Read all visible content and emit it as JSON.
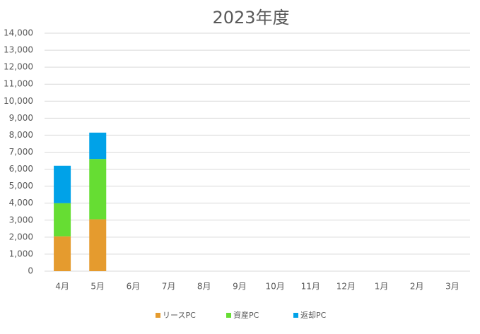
{
  "chart_data": {
    "type": "stacked_bar",
    "title": "2023年度",
    "categories": [
      "4月",
      "5月",
      "6月",
      "7月",
      "8月",
      "9月",
      "10月",
      "11月",
      "12月",
      "1月",
      "2月",
      "3月"
    ],
    "series": [
      {
        "name": "リースPC",
        "color": "#e59b2e",
        "values": [
          2050,
          3050,
          null,
          null,
          null,
          null,
          null,
          null,
          null,
          null,
          null,
          null
        ]
      },
      {
        "name": "資産PC",
        "color": "#66dd33",
        "values": [
          1950,
          3550,
          null,
          null,
          null,
          null,
          null,
          null,
          null,
          null,
          null,
          null
        ]
      },
      {
        "name": "返却PC",
        "color": "#00a2e8",
        "values": [
          2200,
          1550,
          null,
          null,
          null,
          null,
          null,
          null,
          null,
          null,
          null,
          null
        ]
      }
    ],
    "ylim": [
      0,
      14000
    ],
    "yticks": [
      0,
      {
        "value": 1000,
        "label": "1,000"
      },
      {
        "value": 2000,
        "label": "2,000"
      },
      {
        "value": 3000,
        "label": "3,000"
      },
      {
        "value": 4000,
        "label": "4,000"
      },
      {
        "value": 5000,
        "label": "5,000"
      },
      {
        "value": 6000,
        "label": "6,000"
      },
      {
        "value": 7000,
        "label": "7,000"
      },
      {
        "value": 8000,
        "label": "8,000"
      },
      {
        "value": 9000,
        "label": "9,000"
      },
      {
        "value": 10000,
        "label": "10,000"
      },
      {
        "value": 11000,
        "label": "11,000"
      },
      {
        "value": 12000,
        "label": "12,000"
      },
      {
        "value": 13000,
        "label": "13,000"
      },
      {
        "value": 14000,
        "label": "14,000"
      }
    ],
    "grid": true,
    "legend": "bottom"
  }
}
